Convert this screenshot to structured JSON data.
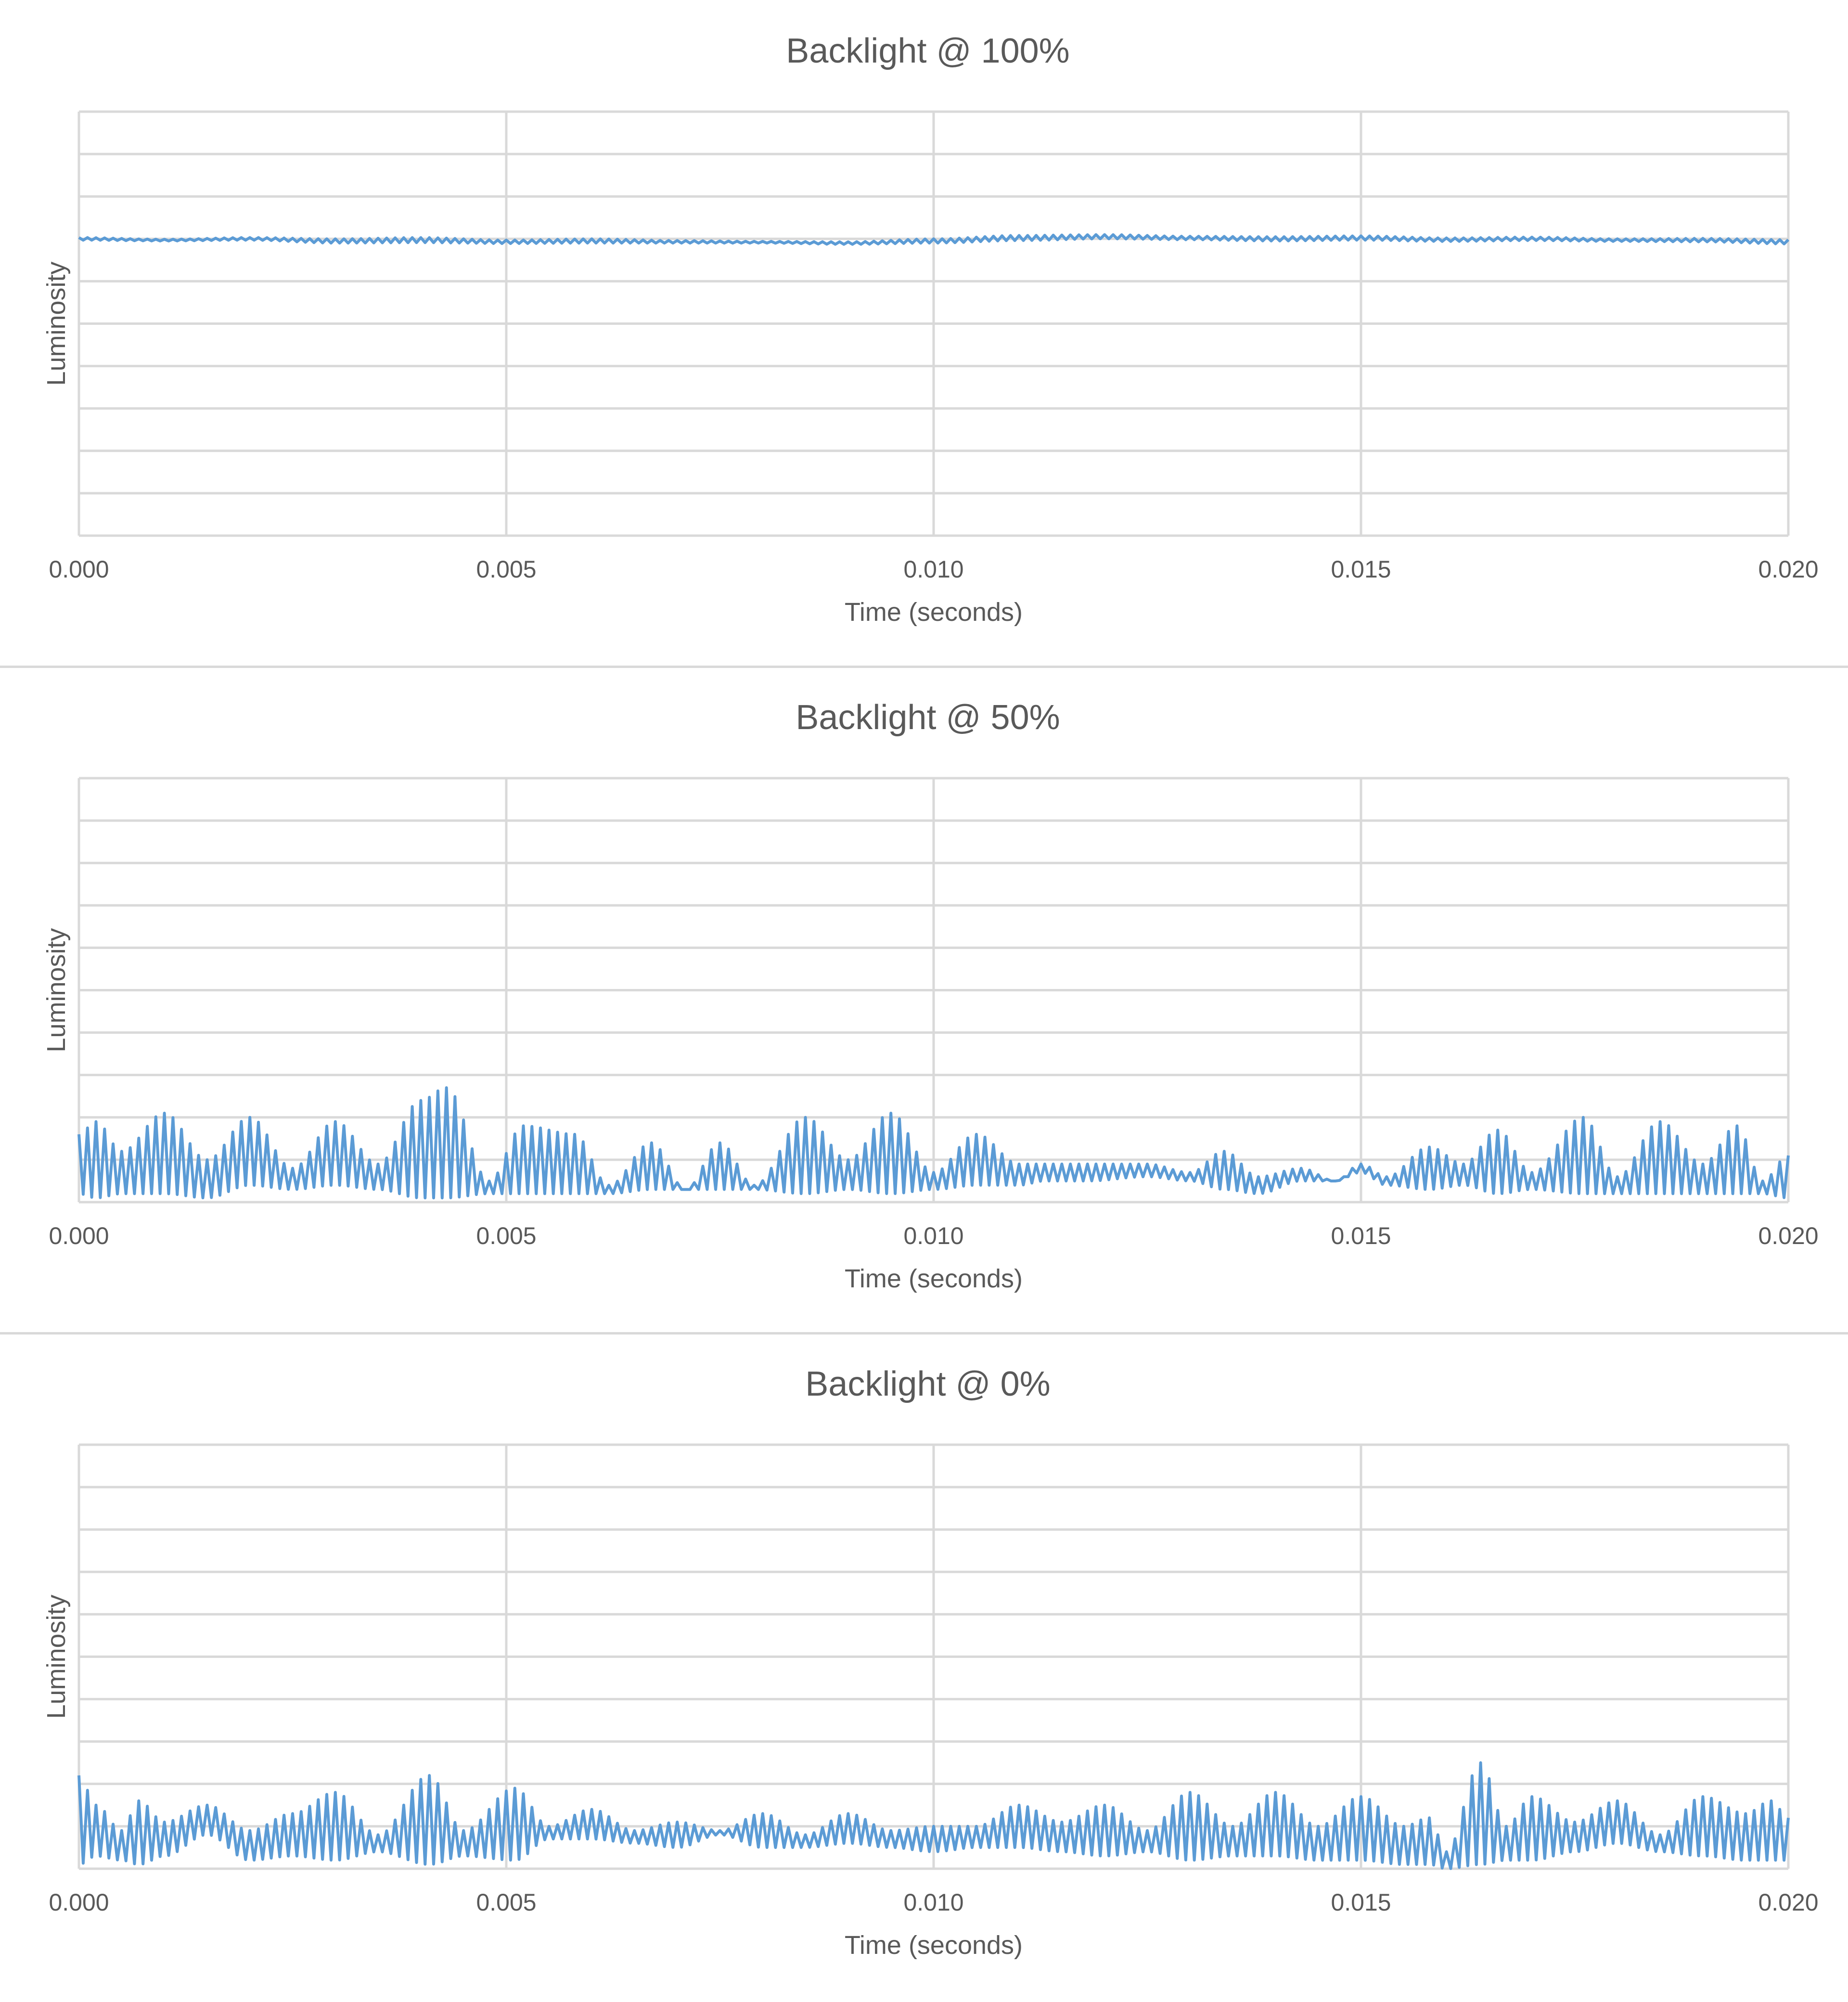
{
  "colors": {
    "series": "#5b9bd5",
    "grid": "#d9d9d9",
    "axis_text": "#595959",
    "title_text": "#595959",
    "divider": "#d9d9d9"
  },
  "chart_data": [
    {
      "type": "line",
      "title": "Backlight @ 100%",
      "xlabel": "Time (seconds)",
      "ylabel": "Luminosity",
      "xlim": [
        0,
        0.02
      ],
      "ylim": [
        0,
        10
      ],
      "x_ticks": [
        "0.000",
        "0.005",
        "0.010",
        "0.015",
        "0.020"
      ],
      "grid": true,
      "y_tick_labels_shown": false,
      "series": [
        {
          "style": "dense-oscillation",
          "oscillation_period": 0.0001,
          "envelope": {
            "x": [
              0.0,
              0.001,
              0.002,
              0.003,
              0.004,
              0.005,
              0.006,
              0.007,
              0.008,
              0.009,
              0.01,
              0.011,
              0.012,
              0.013,
              0.014,
              0.015,
              0.016,
              0.017,
              0.018,
              0.019,
              0.02
            ],
            "mid": [
              7.0,
              6.97,
              7.0,
              6.95,
              6.97,
              6.93,
              6.95,
              6.93,
              6.92,
              6.9,
              6.95,
              7.02,
              7.05,
              7.02,
              7.0,
              7.02,
              6.98,
              7.0,
              6.97,
              6.97,
              6.93
            ],
            "amp": [
              0.03,
              0.02,
              0.03,
              0.05,
              0.06,
              0.04,
              0.05,
              0.03,
              0.02,
              0.03,
              0.05,
              0.06,
              0.05,
              0.04,
              0.05,
              0.05,
              0.04,
              0.04,
              0.03,
              0.04,
              0.05
            ]
          }
        }
      ]
    },
    {
      "type": "line",
      "title": "Backlight @ 50%",
      "xlabel": "Time (seconds)",
      "ylabel": "Luminosity",
      "xlim": [
        0,
        0.02
      ],
      "ylim": [
        0,
        10
      ],
      "x_ticks": [
        "0.000",
        "0.005",
        "0.010",
        "0.015",
        "0.020"
      ],
      "grid": true,
      "y_tick_labels_shown": false,
      "series": [
        {
          "style": "dense-oscillation",
          "oscillation_period": 0.0001,
          "envelope": {
            "x": [
              0.0,
              0.0002,
              0.0005,
              0.001,
              0.0015,
              0.002,
              0.0025,
              0.003,
              0.0035,
              0.004,
              0.0043,
              0.0048,
              0.0052,
              0.0058,
              0.0062,
              0.0067,
              0.0071,
              0.0075,
              0.0079,
              0.0085,
              0.009,
              0.0095,
              0.01,
              0.0105,
              0.011,
              0.0113,
              0.0118,
              0.0125,
              0.013,
              0.0134,
              0.0138,
              0.0143,
              0.0147,
              0.015,
              0.0153,
              0.0158,
              0.0162,
              0.0166,
              0.017,
              0.0176,
              0.018,
              0.0185,
              0.019,
              0.0194,
              0.0197,
              0.02
            ],
            "top": [
              1.6,
              1.9,
              1.2,
              2.1,
              1.0,
              2.0,
              0.8,
              1.9,
              0.9,
              2.4,
              2.7,
              0.5,
              1.8,
              1.6,
              0.4,
              1.4,
              0.3,
              1.4,
              0.4,
              2.0,
              1.0,
              2.1,
              0.7,
              1.6,
              0.9,
              0.9,
              0.9,
              0.9,
              0.7,
              1.2,
              0.6,
              0.8,
              0.5,
              0.9,
              0.6,
              1.3,
              0.9,
              1.7,
              0.7,
              2.0,
              0.6,
              1.9,
              0.9,
              1.8,
              0.5,
              1.1
            ],
            "bottom": [
              0.2,
              0.1,
              0.2,
              0.2,
              0.1,
              0.4,
              0.3,
              0.4,
              0.3,
              0.1,
              0.1,
              0.2,
              0.2,
              0.2,
              0.2,
              0.3,
              0.3,
              0.3,
              0.3,
              0.2,
              0.3,
              0.2,
              0.3,
              0.4,
              0.4,
              0.5,
              0.5,
              0.6,
              0.5,
              0.3,
              0.2,
              0.5,
              0.5,
              0.7,
              0.4,
              0.3,
              0.4,
              0.2,
              0.3,
              0.2,
              0.2,
              0.2,
              0.2,
              0.2,
              0.2,
              0.1
            ]
          }
        }
      ]
    },
    {
      "type": "line",
      "title": "Backlight @ 0%",
      "xlabel": "Time (seconds)",
      "ylabel": "Luminosity",
      "xlim": [
        0,
        0.02
      ],
      "ylim": [
        0,
        10
      ],
      "x_ticks": [
        "0.000",
        "0.005",
        "0.010",
        "0.015",
        "0.020"
      ],
      "grid": true,
      "y_tick_labels_shown": false,
      "series": [
        {
          "style": "dense-oscillation",
          "oscillation_period": 0.0001,
          "envelope": {
            "x": [
              0.0,
              0.0002,
              0.0005,
              0.0007,
              0.001,
              0.0015,
              0.002,
              0.0025,
              0.003,
              0.0035,
              0.0041,
              0.0045,
              0.0051,
              0.0055,
              0.006,
              0.0065,
              0.007,
              0.0075,
              0.008,
              0.0085,
              0.009,
              0.0095,
              0.01,
              0.0105,
              0.011,
              0.0115,
              0.012,
              0.0125,
              0.013,
              0.0135,
              0.014,
              0.0145,
              0.015,
              0.0155,
              0.0158,
              0.016,
              0.0164,
              0.0167,
              0.017,
              0.0175,
              0.018,
              0.0185,
              0.019,
              0.0195,
              0.0198,
              0.02
            ],
            "top": [
              2.2,
              1.5,
              0.9,
              1.6,
              1.1,
              1.5,
              0.9,
              1.3,
              1.8,
              0.8,
              2.2,
              0.9,
              1.9,
              1.0,
              1.4,
              0.9,
              1.1,
              0.9,
              1.3,
              0.8,
              1.3,
              0.9,
              1.0,
              1.0,
              1.5,
              1.1,
              1.5,
              0.9,
              1.8,
              1.0,
              1.8,
              1.0,
              1.7,
              1.0,
              1.2,
              0.4,
              2.5,
              1.0,
              1.7,
              1.1,
              1.6,
              0.8,
              1.7,
              1.3,
              1.6,
              1.2
            ],
            "bottom": [
              0.1,
              0.3,
              0.2,
              0.1,
              0.3,
              0.8,
              0.2,
              0.3,
              0.2,
              0.4,
              0.1,
              0.3,
              0.2,
              0.7,
              0.7,
              0.6,
              0.5,
              0.8,
              0.5,
              0.5,
              0.6,
              0.5,
              0.4,
              0.5,
              0.5,
              0.4,
              0.3,
              0.4,
              0.2,
              0.3,
              0.3,
              0.2,
              0.2,
              0.1,
              0.1,
              0.0,
              0.1,
              0.2,
              0.2,
              0.4,
              0.6,
              0.4,
              0.3,
              0.2,
              0.2,
              0.2
            ]
          }
        }
      ]
    }
  ]
}
